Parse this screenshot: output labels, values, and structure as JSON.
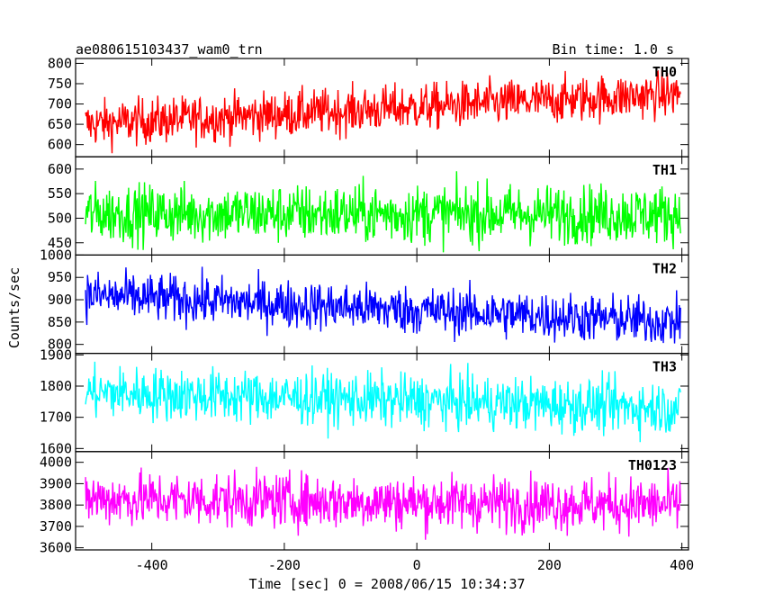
{
  "chart_data": {
    "type": "line",
    "title_left": "ae080615103437_wam0_trn",
    "title_right": "Bin time: 1.0 s",
    "xlabel": "Time [sec] 0 = 2008/06/15 10:34:37",
    "ylabel": "Counts/sec",
    "xlim": [
      -515,
      410
    ],
    "xticks": [
      -400,
      -200,
      0,
      200,
      400
    ],
    "x_range": [
      -500,
      398
    ],
    "bin_time": 1.0,
    "panels": [
      {
        "name": "TH0",
        "color": "#ff0000",
        "ylim": [
          570,
          812
        ],
        "yticks": [
          600,
          650,
          700,
          750,
          800
        ],
        "mean_start": 650,
        "mean_end": 725,
        "noise_amplitude": 40
      },
      {
        "name": "TH1",
        "color": "#00ff00",
        "ylim": [
          425,
          625
        ],
        "yticks": [
          450,
          500,
          550,
          600
        ],
        "mean_start": 510,
        "mean_end": 508,
        "noise_amplitude": 42
      },
      {
        "name": "TH2",
        "color": "#0000ff",
        "ylim": [
          780,
          1000
        ],
        "yticks": [
          800,
          850,
          900,
          950,
          1000
        ],
        "mean_start": 910,
        "mean_end": 850,
        "noise_amplitude": 38
      },
      {
        "name": "TH3",
        "color": "#00ffff",
        "ylim": [
          1590,
          1905
        ],
        "yticks": [
          1600,
          1700,
          1800,
          1900
        ],
        "mean_start": 1780,
        "mean_end": 1730,
        "noise_amplitude": 60
      },
      {
        "name": "TH0123",
        "color": "#ff00ff",
        "ylim": [
          3590,
          4050
        ],
        "yticks": [
          3600,
          3700,
          3800,
          3900,
          4000
        ],
        "mean_start": 3830,
        "mean_end": 3800,
        "noise_amplitude": 90
      }
    ]
  }
}
